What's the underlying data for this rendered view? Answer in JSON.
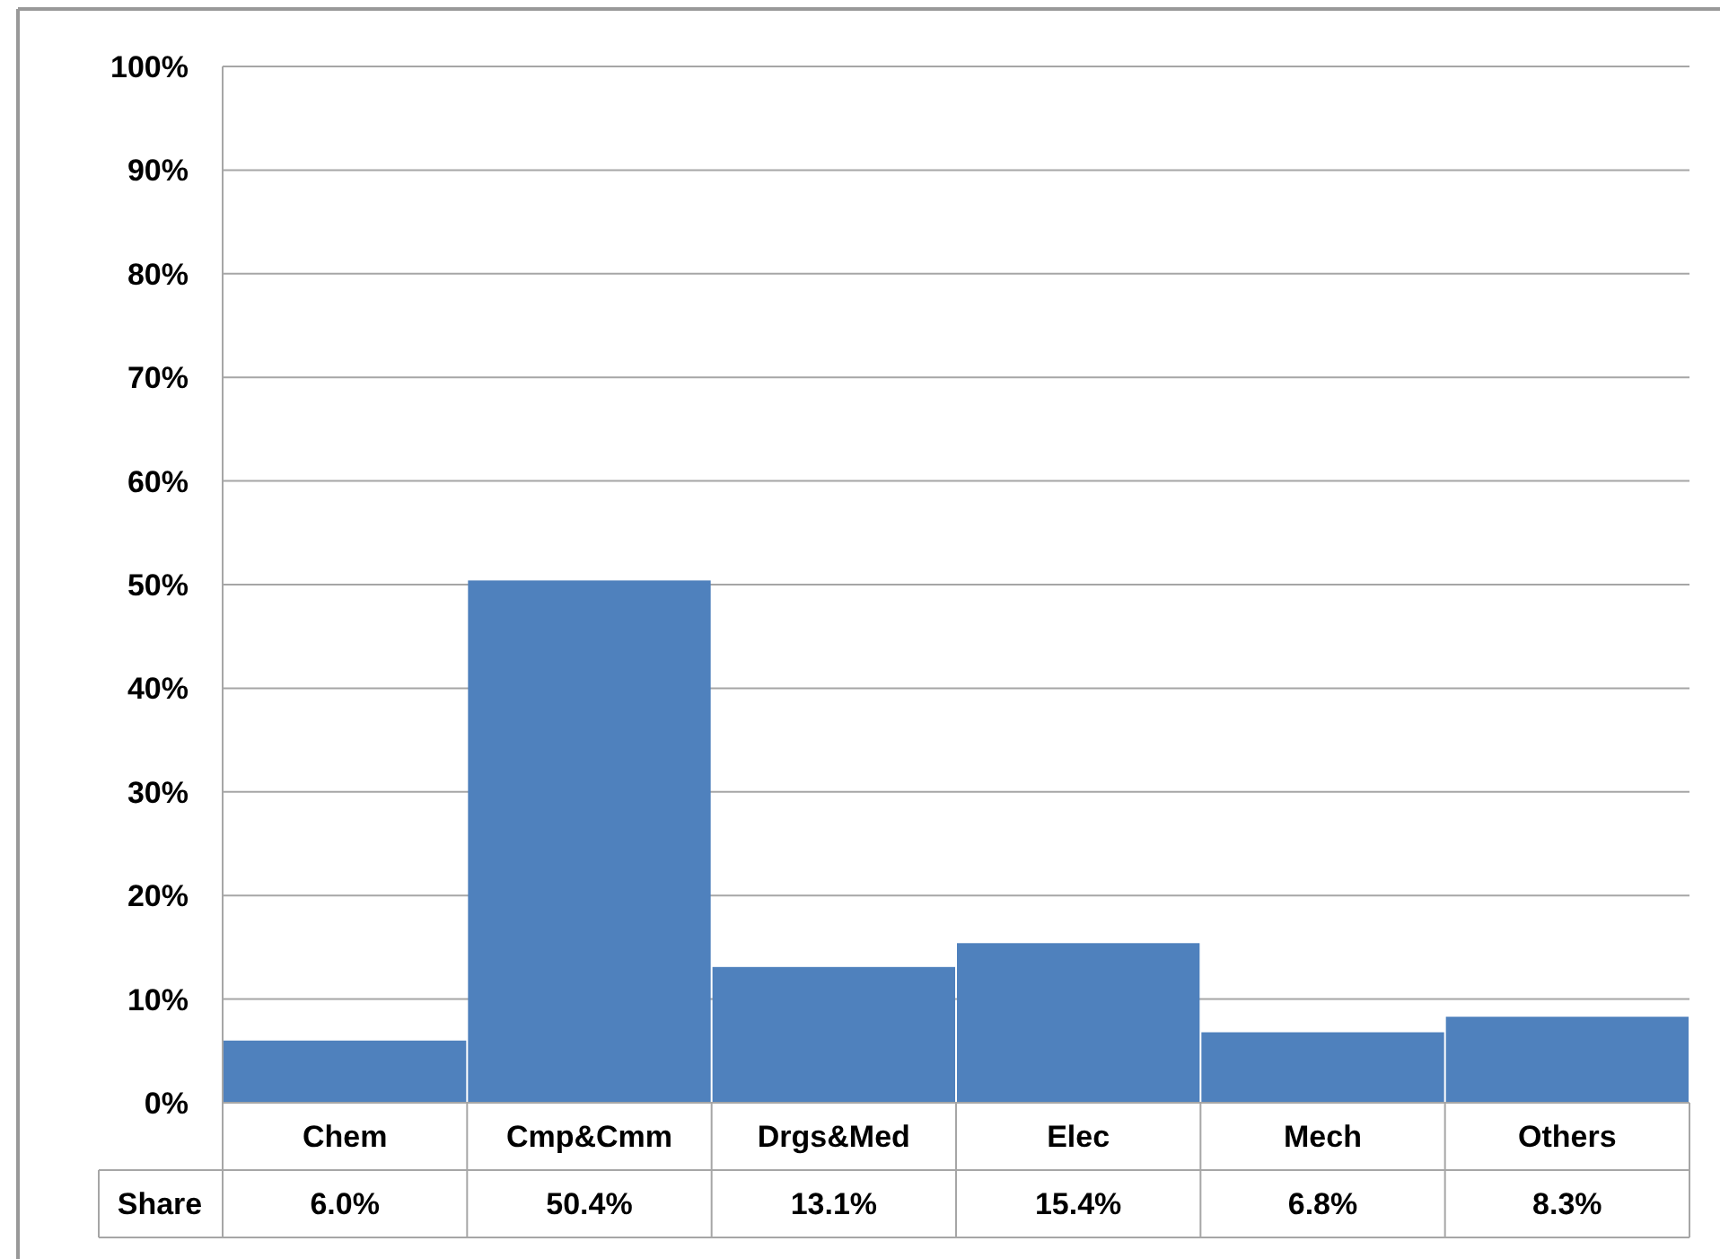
{
  "chart_data": {
    "type": "bar",
    "categories": [
      "Chem",
      "Cmp&Cmm",
      "Drgs&Med",
      "Elec",
      "Mech",
      "Others"
    ],
    "series": [
      {
        "name": "Share",
        "color": "#4f81bd",
        "values": [
          6.0,
          50.4,
          13.1,
          15.4,
          6.8,
          8.3
        ],
        "value_labels": [
          "6.0%",
          "50.4%",
          "13.1%",
          "15.4%",
          "6.8%",
          "8.3%"
        ]
      }
    ],
    "ylim": [
      0,
      100
    ],
    "yticks": [
      {
        "value": 0,
        "label": "0%"
      },
      {
        "value": 10,
        "label": "10%"
      },
      {
        "value": 20,
        "label": "20%"
      },
      {
        "value": 30,
        "label": "30%"
      },
      {
        "value": 40,
        "label": "40%"
      },
      {
        "value": 50,
        "label": "50%"
      },
      {
        "value": 60,
        "label": "60%"
      },
      {
        "value": 70,
        "label": "70%"
      },
      {
        "value": 80,
        "label": "80%"
      },
      {
        "value": 90,
        "label": "90%"
      },
      {
        "value": 100,
        "label": "100%"
      }
    ],
    "grid": "y"
  }
}
